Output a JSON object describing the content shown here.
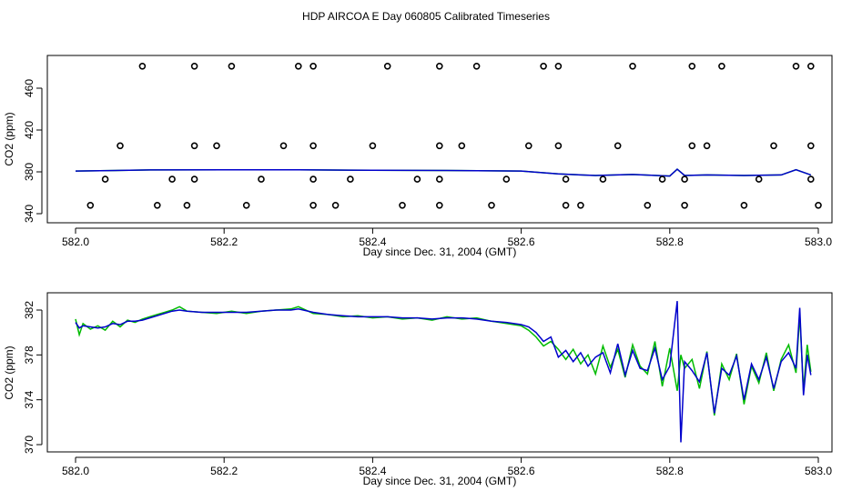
{
  "title": "HDP AIRCOA E  Day 060805  Calibrated Timeseries",
  "colors": {
    "series1": "#00bb00",
    "series2": "#0000cc",
    "points": "#000000",
    "axis": "#000000"
  },
  "chart_data": [
    {
      "type": "line",
      "xlabel": "Day since Dec. 31, 2004 (GMT)",
      "ylabel": "CO2 (ppm)",
      "xlim": [
        582.0,
        583.0
      ],
      "ylim": [
        340,
        480
      ],
      "xticks": [
        "582.0",
        "582.2",
        "582.4",
        "582.6",
        "582.8",
        "583.0"
      ],
      "yticks": [
        "340",
        "380",
        "420",
        "460"
      ],
      "grid": false,
      "scatter": {
        "x": [
          582.09,
          582.16,
          582.21,
          582.3,
          582.32,
          582.42,
          582.49,
          582.54,
          582.63,
          582.65,
          582.75,
          582.83,
          582.87,
          582.97,
          582.99,
          582.06,
          582.16,
          582.19,
          582.28,
          582.32,
          582.4,
          582.49,
          582.52,
          582.61,
          582.65,
          582.73,
          582.83,
          582.85,
          582.94,
          582.99,
          582.04,
          582.13,
          582.16,
          582.25,
          582.32,
          582.37,
          582.46,
          582.49,
          582.58,
          582.66,
          582.71,
          582.79,
          582.82,
          582.92,
          582.99,
          582.02,
          582.11,
          582.15,
          582.23,
          582.32,
          582.35,
          582.44,
          582.49,
          582.56,
          582.66,
          582.68,
          582.77,
          582.82,
          582.9,
          583.0
        ],
        "y": [
          481,
          481,
          481,
          481,
          481,
          481,
          481,
          481,
          481,
          481,
          481,
          481,
          481,
          481,
          481,
          405,
          405,
          405,
          405,
          405,
          405,
          405,
          405,
          405,
          405,
          405,
          405,
          405,
          405,
          405,
          373,
          373,
          373,
          373,
          373,
          373,
          373,
          373,
          373,
          373,
          373,
          373,
          373,
          373,
          373,
          348,
          348,
          348,
          348,
          348,
          348,
          348,
          348,
          348,
          348,
          348,
          348,
          348,
          348,
          348
        ]
      },
      "series": [
        {
          "x": [
            582.0,
            582.1,
            582.2,
            582.3,
            582.4,
            582.5,
            582.6,
            582.65,
            582.7,
            582.75,
            582.8,
            582.81,
            582.82,
            582.85,
            582.9,
            582.95,
            582.97,
            582.99
          ],
          "values": [
            380.8,
            381.8,
            381.9,
            382.0,
            381.5,
            381.3,
            380.8,
            378.0,
            376.5,
            377.5,
            376.0,
            382.5,
            376.5,
            377.0,
            376.5,
            377.0,
            382.0,
            377.0
          ]
        },
        {
          "x": [
            582.0,
            582.1,
            582.2,
            582.3,
            582.4,
            582.5,
            582.6,
            582.65,
            582.7,
            582.75,
            582.8,
            582.81,
            582.82,
            582.85,
            582.9,
            582.95,
            582.97,
            582.99
          ],
          "values": [
            380.8,
            381.8,
            381.9,
            382.0,
            381.5,
            381.3,
            380.8,
            378.0,
            376.5,
            377.5,
            376.0,
            382.5,
            376.5,
            377.0,
            376.5,
            377.0,
            382.0,
            377.0
          ]
        }
      ]
    },
    {
      "type": "line",
      "xlabel": "Day since Dec. 31, 2004 (GMT)",
      "ylabel": "CO2 (ppm)",
      "xlim": [
        582.0,
        583.0
      ],
      "ylim": [
        370,
        383
      ],
      "xticks": [
        "582.0",
        "582.2",
        "582.4",
        "582.6",
        "582.8",
        "583.0"
      ],
      "yticks": [
        "370",
        "374",
        "378",
        "382"
      ],
      "grid": false,
      "series": [
        {
          "x": [
            582.0,
            582.005,
            582.01,
            582.02,
            582.03,
            582.04,
            582.05,
            582.06,
            582.07,
            582.08,
            582.09,
            582.1,
            582.11,
            582.12,
            582.13,
            582.14,
            582.15,
            582.17,
            582.19,
            582.21,
            582.23,
            582.25,
            582.27,
            582.29,
            582.3,
            582.32,
            582.34,
            582.36,
            582.38,
            582.4,
            582.42,
            582.44,
            582.46,
            582.48,
            582.5,
            582.52,
            582.54,
            582.56,
            582.58,
            582.6,
            582.61,
            582.62,
            582.63,
            582.64,
            582.65,
            582.66,
            582.67,
            582.68,
            582.69,
            582.7,
            582.71,
            582.72,
            582.73,
            582.74,
            582.75,
            582.76,
            582.77,
            582.78,
            582.79,
            582.8,
            582.81,
            582.815,
            582.82,
            582.83,
            582.84,
            582.85,
            582.86,
            582.87,
            582.88,
            582.89,
            582.9,
            582.91,
            582.92,
            582.93,
            582.94,
            582.95,
            582.96,
            582.97,
            582.975,
            582.98,
            582.985,
            582.99
          ],
          "values": [
            381.2,
            379.8,
            380.8,
            380.3,
            380.6,
            380.2,
            381.0,
            380.5,
            381.1,
            380.9,
            381.2,
            381.4,
            381.6,
            381.8,
            382.0,
            382.3,
            381.9,
            381.8,
            381.7,
            381.9,
            381.7,
            381.9,
            382.0,
            382.1,
            382.3,
            381.7,
            381.6,
            381.4,
            381.5,
            381.3,
            381.4,
            381.2,
            381.3,
            381.1,
            381.4,
            381.2,
            381.3,
            381.0,
            380.8,
            380.6,
            380.2,
            379.6,
            378.8,
            379.2,
            378.5,
            377.6,
            378.5,
            377.2,
            378.0,
            376.3,
            378.8,
            376.9,
            378.5,
            376.0,
            378.9,
            377.0,
            376.3,
            379.2,
            375.2,
            378.6,
            374.8,
            378.0,
            376.8,
            377.6,
            375.0,
            378.3,
            372.6,
            377.2,
            375.8,
            378.1,
            373.6,
            377.0,
            375.5,
            378.2,
            374.8,
            377.6,
            378.9,
            376.4,
            381.6,
            374.8,
            378.9,
            376.5
          ]
        },
        {
          "x": [
            582.0,
            582.005,
            582.01,
            582.02,
            582.03,
            582.04,
            582.05,
            582.06,
            582.07,
            582.08,
            582.09,
            582.1,
            582.11,
            582.12,
            582.13,
            582.14,
            582.15,
            582.17,
            582.19,
            582.21,
            582.23,
            582.25,
            582.27,
            582.29,
            582.3,
            582.32,
            582.34,
            582.36,
            582.38,
            582.4,
            582.42,
            582.44,
            582.46,
            582.48,
            582.5,
            582.52,
            582.54,
            582.56,
            582.58,
            582.6,
            582.61,
            582.62,
            582.63,
            582.64,
            582.65,
            582.66,
            582.67,
            582.68,
            582.69,
            582.7,
            582.71,
            582.72,
            582.73,
            582.74,
            582.75,
            582.76,
            582.77,
            582.78,
            582.79,
            582.8,
            582.81,
            582.815,
            582.82,
            582.83,
            582.84,
            582.85,
            582.86,
            582.87,
            582.88,
            582.89,
            582.9,
            582.91,
            582.92,
            582.93,
            582.94,
            582.95,
            582.96,
            582.97,
            582.975,
            582.98,
            582.985,
            582.99
          ],
          "values": [
            380.9,
            380.4,
            380.6,
            380.5,
            380.4,
            380.5,
            380.8,
            380.7,
            381.0,
            381.0,
            381.1,
            381.3,
            381.5,
            381.7,
            381.9,
            382.0,
            381.9,
            381.8,
            381.8,
            381.8,
            381.8,
            381.9,
            382.0,
            382.0,
            382.1,
            381.8,
            381.6,
            381.5,
            381.4,
            381.4,
            381.4,
            381.3,
            381.3,
            381.2,
            381.3,
            381.3,
            381.2,
            381.0,
            380.9,
            380.7,
            380.5,
            380.0,
            379.2,
            379.6,
            377.8,
            378.4,
            377.4,
            378.2,
            377.0,
            377.8,
            378.2,
            376.4,
            379.0,
            376.2,
            378.4,
            376.8,
            376.6,
            378.6,
            375.8,
            377.0,
            382.8,
            370.2,
            377.4,
            376.6,
            375.6,
            378.2,
            372.8,
            376.8,
            376.2,
            377.9,
            374.0,
            377.2,
            375.8,
            377.8,
            375.0,
            377.4,
            378.2,
            376.8,
            382.2,
            374.4,
            378.0,
            376.2
          ]
        }
      ]
    }
  ]
}
